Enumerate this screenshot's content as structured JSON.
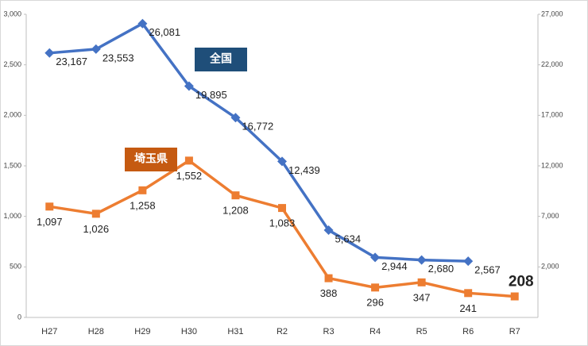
{
  "chart_data": {
    "type": "line",
    "categories": [
      "H27",
      "H28",
      "H29",
      "H30",
      "H31",
      "R2",
      "R3",
      "R4",
      "R5",
      "R6",
      "R7"
    ],
    "series": [
      {
        "name": "全国",
        "color": "#4472c4",
        "legend_color": "#1f4e79",
        "axis": "y2",
        "marker": "diamond",
        "values": [
          23167,
          23553,
          26081,
          19895,
          16772,
          12439,
          5634,
          2944,
          2680,
          2567,
          null
        ],
        "value_labels": [
          "23,167",
          "23,553",
          "26,081",
          "19,895",
          "16,772",
          "12,439",
          "5,634",
          "2,944",
          "2,680",
          "2,567",
          null
        ]
      },
      {
        "name": "埼玉県",
        "color": "#ed7d31",
        "legend_color": "#c55a11",
        "axis": "y",
        "marker": "square",
        "values": [
          1097,
          1026,
          1258,
          1552,
          1208,
          1083,
          388,
          296,
          347,
          241,
          208
        ],
        "value_labels": [
          "1,097",
          "1,026",
          "1,258",
          "1,552",
          "1,208",
          "1,083",
          "388",
          "296",
          "347",
          "241",
          "208"
        ]
      }
    ],
    "ylim": [
      0,
      3000
    ],
    "yticks": [
      0,
      500,
      {
        "value": 1000,
        "label": "1,000"
      },
      {
        "value": 1500,
        "label": "1,500"
      },
      {
        "value": 2000,
        "label": "2,000"
      },
      {
        "value": 2500,
        "label": "2,500"
      },
      {
        "value": 3000,
        "label": "3,000"
      }
    ],
    "y2lim": [
      -3000,
      27000
    ],
    "y2ticks": [
      {
        "value": 2000,
        "label": "2,000"
      },
      {
        "value": 7000,
        "label": "7,000"
      },
      {
        "value": 12000,
        "label": "12,000"
      },
      {
        "value": 17000,
        "label": "17,000"
      },
      {
        "value": 22000,
        "label": "22,000"
      },
      {
        "value": 27000,
        "label": "27,000"
      }
    ],
    "grid": false
  }
}
